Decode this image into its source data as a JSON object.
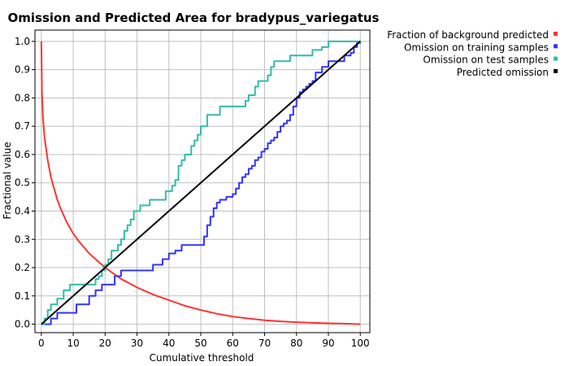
{
  "chart_data": {
    "type": "line",
    "title": "Omission and Predicted Area for bradypus_variegatus",
    "xlabel": "Cumulative threshold",
    "ylabel": "Fractional value",
    "xlim": [
      -2,
      103
    ],
    "ylim": [
      -0.03,
      1.04
    ],
    "xticks": [
      0,
      10,
      20,
      30,
      40,
      50,
      60,
      70,
      80,
      90,
      100
    ],
    "yticks": [
      0.0,
      0.1,
      0.2,
      0.3,
      0.4,
      0.5,
      0.6,
      0.7,
      0.8,
      0.9,
      1.0
    ],
    "ytick_labels": [
      "0.0",
      "0.1",
      "0.2",
      "0.3",
      "0.4",
      "0.5",
      "0.6",
      "0.7",
      "0.8",
      "0.9",
      "1.0"
    ],
    "grid": true,
    "legend_position": "right, outside plot, top",
    "series": [
      {
        "name": "Fraction of background predicted",
        "color": "#ff3333",
        "x": [
          0,
          0.2,
          0.5,
          1,
          1.5,
          2,
          3,
          4,
          5,
          6,
          8,
          10,
          12,
          15,
          18,
          20,
          25,
          30,
          35,
          40,
          45,
          50,
          55,
          60,
          65,
          70,
          75,
          80,
          85,
          90,
          95,
          100
        ],
        "y": [
          1.0,
          0.82,
          0.73,
          0.66,
          0.62,
          0.58,
          0.52,
          0.48,
          0.44,
          0.41,
          0.36,
          0.32,
          0.29,
          0.25,
          0.22,
          0.2,
          0.16,
          0.13,
          0.105,
          0.085,
          0.065,
          0.05,
          0.037,
          0.027,
          0.02,
          0.014,
          0.01,
          0.007,
          0.005,
          0.003,
          0.002,
          0.0
        ]
      },
      {
        "name": "Omission on training samples",
        "color": "#3333ff",
        "step": true,
        "x": [
          0,
          2,
          3,
          5,
          10,
          11,
          15,
          17,
          19,
          23,
          25,
          30,
          35,
          38,
          40,
          42,
          44,
          46,
          50,
          51,
          52,
          53,
          54,
          55,
          56,
          57,
          58,
          60,
          61,
          62,
          63,
          64,
          65,
          66,
          67,
          68,
          69,
          70,
          71,
          72,
          73,
          74,
          75,
          76,
          77,
          78,
          79,
          80,
          81,
          82,
          83,
          84,
          85,
          86,
          88,
          90,
          95,
          97,
          98,
          99
        ],
        "y": [
          0.0,
          0.0,
          0.02,
          0.04,
          0.04,
          0.07,
          0.1,
          0.12,
          0.14,
          0.17,
          0.19,
          0.19,
          0.21,
          0.23,
          0.25,
          0.26,
          0.28,
          0.28,
          0.28,
          0.31,
          0.35,
          0.38,
          0.41,
          0.43,
          0.44,
          0.44,
          0.45,
          0.46,
          0.48,
          0.5,
          0.52,
          0.53,
          0.55,
          0.56,
          0.58,
          0.59,
          0.61,
          0.62,
          0.64,
          0.65,
          0.66,
          0.68,
          0.7,
          0.71,
          0.72,
          0.74,
          0.77,
          0.8,
          0.82,
          0.83,
          0.84,
          0.85,
          0.86,
          0.89,
          0.91,
          0.93,
          0.95,
          0.96,
          0.98,
          1.0
        ]
      },
      {
        "name": "Omission on test samples",
        "color": "#33bbaa",
        "step": true,
        "x": [
          0,
          1,
          2,
          3,
          5,
          7,
          9,
          13,
          17,
          18,
          19,
          20,
          21,
          22,
          24,
          25,
          26,
          27,
          28,
          29,
          30,
          31,
          32,
          34,
          37,
          39,
          41,
          42,
          43,
          44,
          45,
          47,
          48,
          49,
          50,
          52,
          53,
          56,
          60,
          64,
          65,
          67,
          68,
          69,
          71,
          72,
          73,
          78,
          80,
          85,
          88,
          90,
          96,
          100
        ],
        "y": [
          0.0,
          0.02,
          0.05,
          0.07,
          0.09,
          0.12,
          0.14,
          0.14,
          0.16,
          0.17,
          0.19,
          0.21,
          0.23,
          0.26,
          0.28,
          0.3,
          0.33,
          0.35,
          0.37,
          0.4,
          0.4,
          0.42,
          0.42,
          0.44,
          0.44,
          0.47,
          0.49,
          0.51,
          0.56,
          0.58,
          0.6,
          0.63,
          0.65,
          0.67,
          0.7,
          0.74,
          0.74,
          0.77,
          0.77,
          0.79,
          0.81,
          0.84,
          0.86,
          0.86,
          0.88,
          0.91,
          0.93,
          0.95,
          0.95,
          0.97,
          0.98,
          1.0,
          1.0,
          0.99
        ]
      },
      {
        "name": "Predicted omission",
        "color": "#000000",
        "x": [
          0,
          100
        ],
        "y": [
          0.0,
          1.0
        ]
      }
    ]
  }
}
